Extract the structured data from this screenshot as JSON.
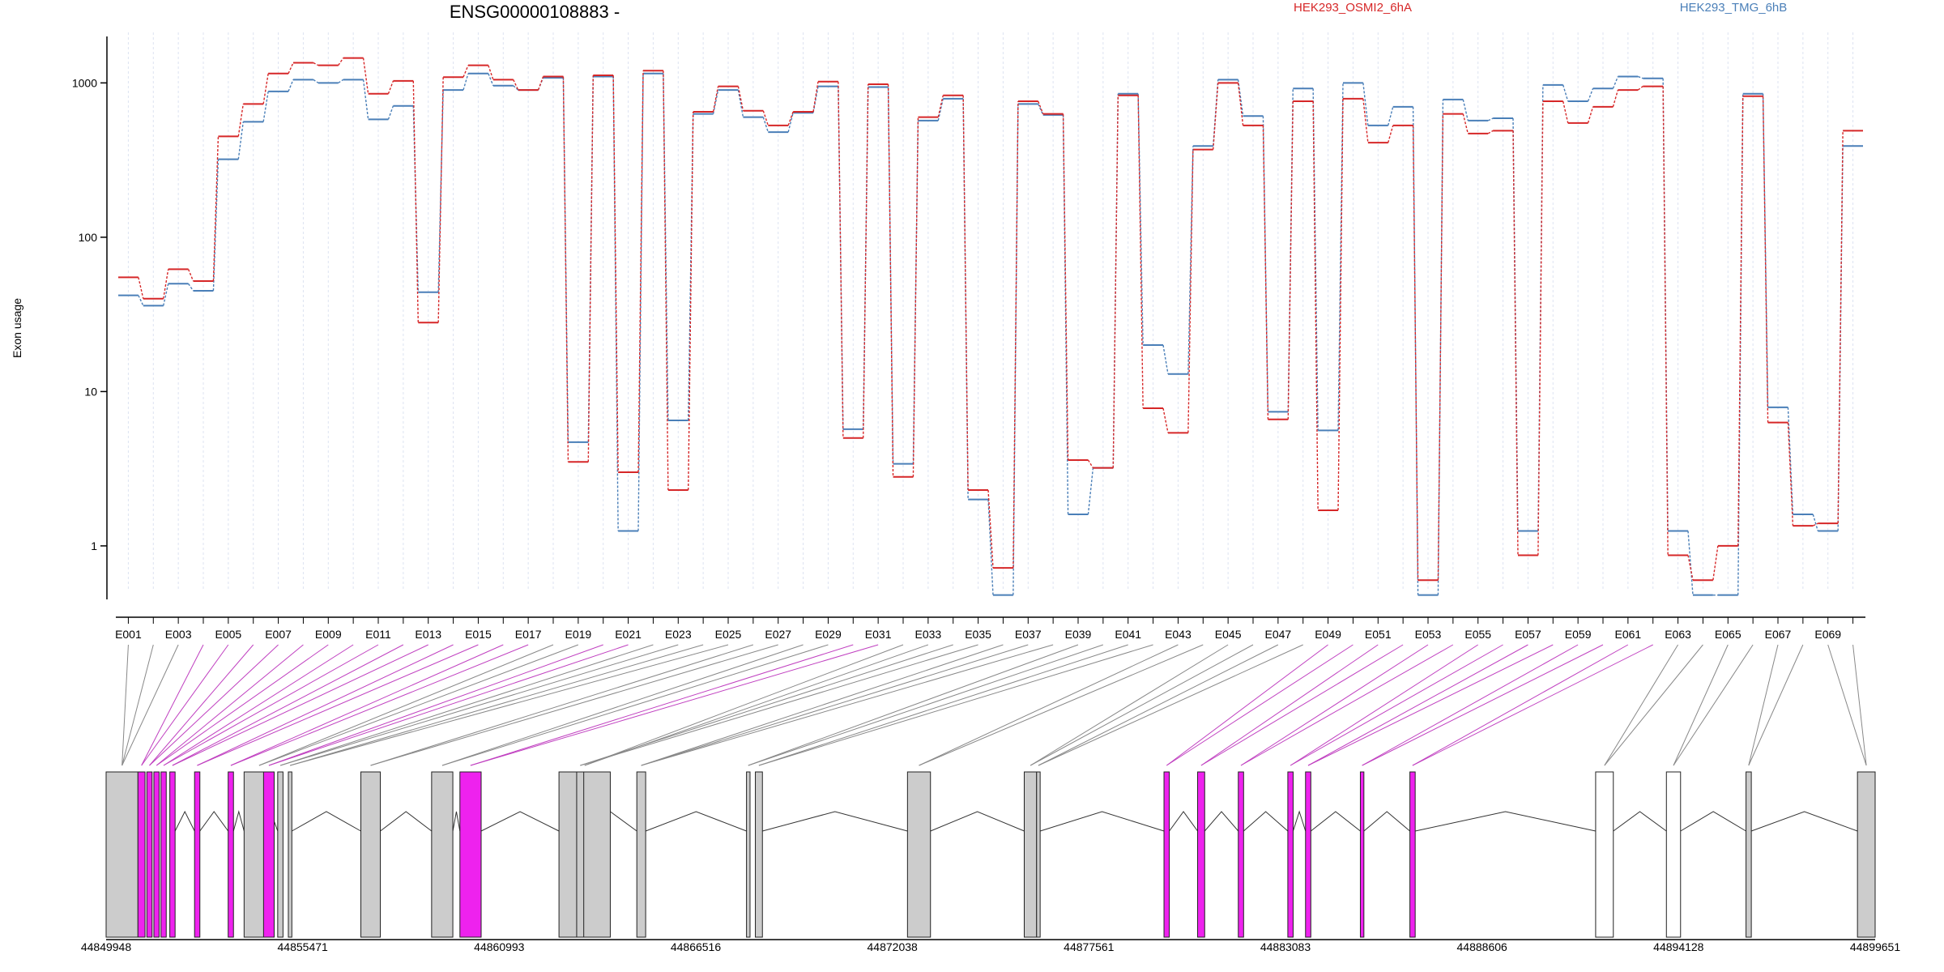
{
  "chart_data": {
    "type": "line",
    "title": "ENSG00000108883 -",
    "ylabel": "Exon usage",
    "xlabel": "",
    "yscale": "log",
    "ylim": [
      0.45,
      2000
    ],
    "y_ticks": [
      1,
      10,
      100,
      1000
    ],
    "y_tick_labels": [
      "1",
      "10",
      "100",
      "1000"
    ],
    "exons": [
      "E001",
      "E002",
      "E003",
      "E004",
      "E005",
      "E006",
      "E007",
      "E008",
      "E009",
      "E010",
      "E011",
      "E012",
      "E013",
      "E014",
      "E015",
      "E016",
      "E017",
      "E018",
      "E019",
      "E020",
      "E021",
      "E022",
      "E023",
      "E024",
      "E025",
      "E026",
      "E027",
      "E028",
      "E029",
      "E030",
      "E031",
      "E032",
      "E033",
      "E034",
      "E035",
      "E036",
      "E037",
      "E038",
      "E039",
      "E040",
      "E041",
      "E042",
      "E043",
      "E044",
      "E045",
      "E046",
      "E047",
      "E048",
      "E049",
      "E050",
      "E051",
      "E052",
      "E053",
      "E054",
      "E055",
      "E056",
      "E057",
      "E058",
      "E059",
      "E060",
      "E061",
      "E062",
      "E063",
      "E064",
      "E065",
      "E066",
      "E067",
      "E068",
      "E069",
      "E070"
    ],
    "x_tick_labels": [
      "E001",
      "E003",
      "E005",
      "E007",
      "E009",
      "E011",
      "E013",
      "E015",
      "E017",
      "E019",
      "E021",
      "E023",
      "E025",
      "E027",
      "E029",
      "E031",
      "E033",
      "E035",
      "E037",
      "E039",
      "E041",
      "E043",
      "E045",
      "E047",
      "E049",
      "E051",
      "E053",
      "E055",
      "E057",
      "E059",
      "E061",
      "E063",
      "E065",
      "E067",
      "E069"
    ],
    "series": [
      {
        "name": "HEK293_OSMI2_6hA",
        "color": "#d62728",
        "values": [
          55,
          40,
          62,
          52,
          450,
          730,
          1150,
          1350,
          1300,
          1450,
          850,
          1030,
          28,
          1090,
          1300,
          1050,
          900,
          1100,
          3.5,
          1120,
          3,
          1200,
          2.3,
          650,
          950,
          660,
          530,
          650,
          1020,
          5,
          980,
          2.8,
          600,
          830,
          2.3,
          0.72,
          760,
          630,
          3.6,
          3.2,
          830,
          7.8,
          5.4,
          370,
          1000,
          530,
          6.6,
          760,
          1.7,
          790,
          410,
          530,
          0.6,
          630,
          470,
          490,
          0.87,
          760,
          550,
          700,
          900,
          950,
          0.87,
          0.6,
          1,
          820,
          6.3,
          1.35,
          1.4,
          490
        ]
      },
      {
        "name": "HEK293_TMG_6hB",
        "color": "#4a7fb8",
        "values": [
          42,
          36,
          50,
          45,
          320,
          560,
          880,
          1050,
          1000,
          1050,
          580,
          710,
          44,
          900,
          1150,
          960,
          900,
          1080,
          4.7,
          1100,
          1.25,
          1150,
          6.5,
          630,
          900,
          600,
          480,
          640,
          950,
          5.7,
          940,
          3.4,
          570,
          790,
          2,
          0.48,
          730,
          620,
          1.6,
          3.2,
          850,
          20,
          13,
          390,
          1050,
          610,
          7.4,
          920,
          5.6,
          1000,
          530,
          700,
          0.48,
          780,
          570,
          590,
          1.25,
          970,
          760,
          920,
          1100,
          1070,
          1.25,
          0.48,
          0.48,
          850,
          7.9,
          1.6,
          1.25,
          390
        ]
      }
    ],
    "genomic_axis": {
      "tick_labels": [
        "44849948",
        "44855471",
        "44860993",
        "44866516",
        "44872038",
        "44877561",
        "44883083",
        "44888606",
        "44894128",
        "44899651"
      ]
    }
  }
}
